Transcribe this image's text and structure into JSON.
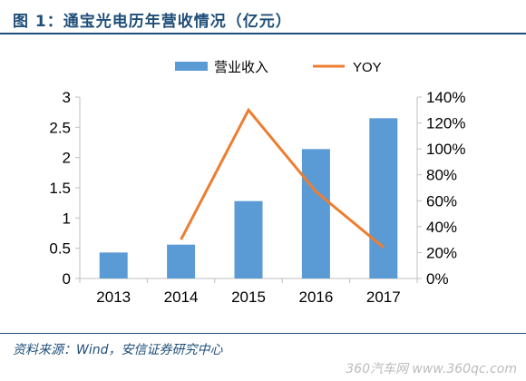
{
  "header": {
    "title": "图 1：通宝光电历年营收情况（亿元）"
  },
  "footer": {
    "source": "资料来源：Wind，安信证券研究中心"
  },
  "watermark": {
    "text": "360汽车网 www.360qc.com"
  },
  "colors": {
    "bar": "#5b9bd5",
    "line": "#ed7d31",
    "axis": "#bfbfbf",
    "text": "#000000"
  },
  "chart_data": {
    "type": "bar",
    "title": "",
    "categories": [
      "2013",
      "2014",
      "2015",
      "2016",
      "2017"
    ],
    "series": [
      {
        "name": "营业收入",
        "type": "bar",
        "axis": "left",
        "values": [
          0.43,
          0.56,
          1.28,
          2.14,
          2.65
        ]
      },
      {
        "name": "YOY",
        "type": "line",
        "axis": "right",
        "values": [
          null,
          0.3,
          1.3,
          0.67,
          0.24
        ]
      }
    ],
    "ylim_left": [
      0,
      3
    ],
    "yticks_left": [
      "0",
      "0.5",
      "1",
      "1.5",
      "2",
      "2.5",
      "3"
    ],
    "ylim_right": [
      0,
      1.4
    ],
    "yticks_right": [
      "0%",
      "20%",
      "40%",
      "60%",
      "80%",
      "100%",
      "120%",
      "140%"
    ],
    "grid": false,
    "legend_position": "top"
  }
}
